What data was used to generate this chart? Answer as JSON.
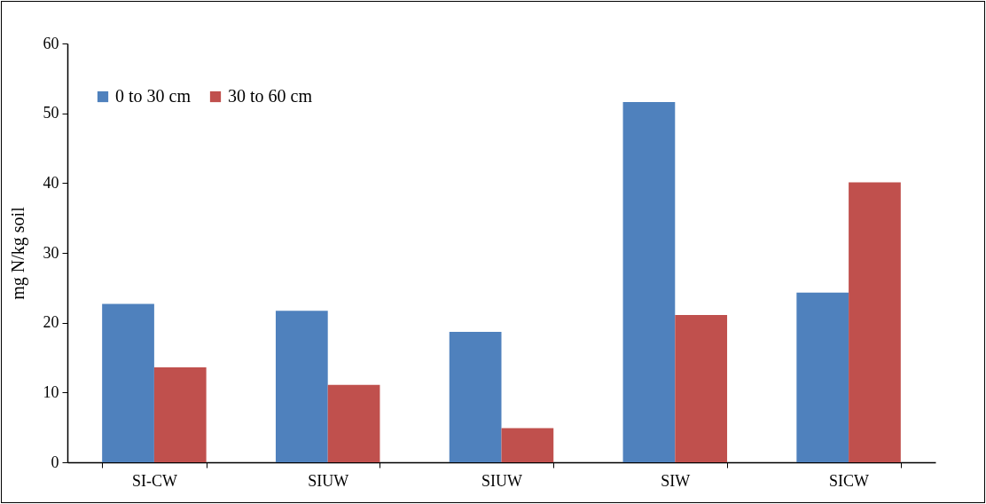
{
  "chart_data": {
    "type": "bar",
    "ylabel": "mg N/kg soil",
    "categories": [
      "SI-CW",
      "SIUW",
      "SIUW",
      "SIW",
      "SICW"
    ],
    "series": [
      {
        "name": "0 to 30 cm",
        "color": "#4f81bd",
        "values": [
          22.7,
          21.7,
          18.7,
          51.6,
          24.3
        ]
      },
      {
        "name": "30 to 60 cm",
        "color": "#c0504d",
        "values": [
          13.6,
          11.1,
          4.9,
          21.1,
          40.1
        ]
      }
    ],
    "ylim": [
      0,
      60
    ],
    "yticks": [
      0,
      10,
      20,
      30,
      40,
      50,
      60
    ],
    "grid": false,
    "legend": "top left"
  }
}
